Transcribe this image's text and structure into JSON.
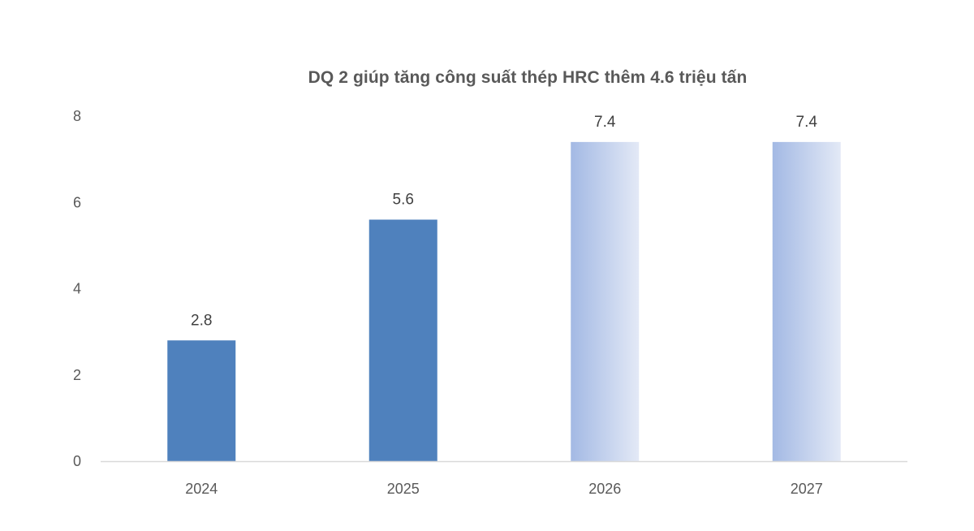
{
  "chart_data": {
    "type": "bar",
    "title": "DQ 2 giúp tăng công suất thép HRC thêm 4.6 triệu tấn",
    "xlabel": "",
    "ylabel": "",
    "categories": [
      "2024",
      "2025",
      "2026",
      "2027"
    ],
    "values": [
      2.8,
      5.6,
      7.4,
      7.4
    ],
    "data_labels": [
      "2.8",
      "5.6",
      "7.4",
      "7.4"
    ],
    "ylim": [
      0,
      8
    ],
    "yticks": [
      "0",
      "2",
      "4",
      "6",
      "8"
    ],
    "grid": false,
    "legend": "none",
    "colors": {
      "solid": "#4f81bd",
      "gradient_start": "#a3b9e4",
      "gradient_end": "#e3e9f6",
      "axis": "#d9d9d9",
      "text": "#595959"
    },
    "bar_styles": [
      "solid",
      "solid",
      "gradient",
      "gradient"
    ]
  }
}
